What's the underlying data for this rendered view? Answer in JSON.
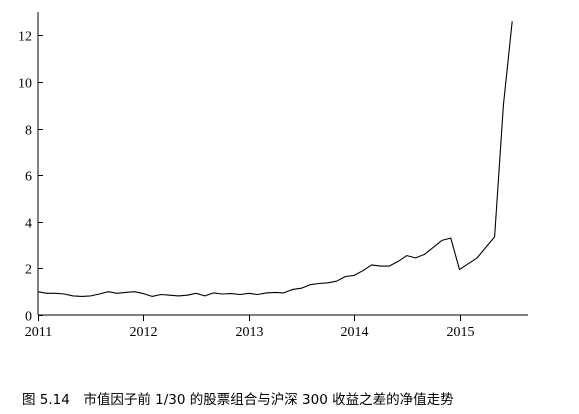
{
  "chart_data": {
    "type": "line",
    "caption": "图 5.14　市值因子前 1/30 的股票组合与沪深 300 收益之差的净值走势",
    "xlabel": "",
    "ylabel": "",
    "xlim": [
      2011.0,
      2015.65
    ],
    "ylim": [
      0,
      13
    ],
    "x_ticks": [
      2011,
      2012,
      2013,
      2014,
      2015
    ],
    "x_tick_labels": [
      "2011",
      "2012",
      "2013",
      "2014",
      "2015"
    ],
    "y_ticks": [
      0,
      2,
      4,
      6,
      8,
      10,
      12
    ],
    "y_tick_labels": [
      "0",
      "2",
      "4",
      "6",
      "8",
      "10",
      "12"
    ],
    "grid": false,
    "series": [
      {
        "color": "#000000",
        "x": [
          2011.0,
          2011.083,
          2011.167,
          2011.25,
          2011.333,
          2011.417,
          2011.5,
          2011.583,
          2011.667,
          2011.75,
          2011.833,
          2011.917,
          2012.0,
          2012.083,
          2012.167,
          2012.25,
          2012.333,
          2012.417,
          2012.5,
          2012.583,
          2012.667,
          2012.75,
          2012.833,
          2012.917,
          2013.0,
          2013.083,
          2013.167,
          2013.25,
          2013.333,
          2013.417,
          2013.5,
          2013.583,
          2013.667,
          2013.75,
          2013.833,
          2013.917,
          2014.0,
          2014.083,
          2014.167,
          2014.25,
          2014.333,
          2014.417,
          2014.5,
          2014.583,
          2014.667,
          2014.75,
          2014.833,
          2014.917,
          2015.0,
          2015.083,
          2015.167,
          2015.25,
          2015.333,
          2015.417,
          2015.5
        ],
        "values": [
          1.0,
          0.93,
          0.93,
          0.9,
          0.82,
          0.8,
          0.82,
          0.9,
          1.0,
          0.93,
          0.97,
          1.0,
          0.92,
          0.8,
          0.88,
          0.85,
          0.82,
          0.85,
          0.93,
          0.82,
          0.95,
          0.9,
          0.92,
          0.88,
          0.93,
          0.88,
          0.95,
          0.97,
          0.95,
          1.1,
          1.15,
          1.3,
          1.35,
          1.38,
          1.45,
          1.65,
          1.7,
          1.9,
          2.15,
          2.1,
          2.1,
          2.3,
          2.55,
          2.45,
          2.6,
          2.9,
          3.2,
          3.3,
          1.95,
          2.2,
          2.45,
          2.9,
          3.35,
          9.0,
          12.6
        ]
      }
    ]
  }
}
